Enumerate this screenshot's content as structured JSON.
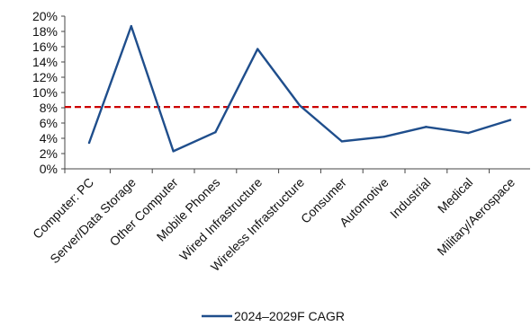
{
  "chart_data": {
    "type": "line",
    "categories": [
      "Computer: PC",
      "Server/Data Storage",
      "Other Computer",
      "Mobile Phones",
      "Wired Infrastructure",
      "Wireless Infrastructure",
      "Consumer",
      "Automotive",
      "Industrial",
      "Medical",
      "Military/Aerospace"
    ],
    "series": [
      {
        "name": "2024–2029F CAGR",
        "values": [
          3.4,
          18.7,
          2.3,
          4.8,
          15.7,
          8.3,
          3.6,
          4.2,
          5.5,
          4.7,
          6.4
        ],
        "color": "#1f4e8c"
      }
    ],
    "reference_line": {
      "value": 8.1,
      "color": "#cc0000",
      "style": "dashed"
    },
    "yticks": [
      "0%",
      "2%",
      "4%",
      "6%",
      "8%",
      "10%",
      "12%",
      "14%",
      "16%",
      "18%",
      "20%"
    ],
    "ylim": [
      0,
      20
    ],
    "grid": false,
    "legend_position": "bottom-center"
  }
}
